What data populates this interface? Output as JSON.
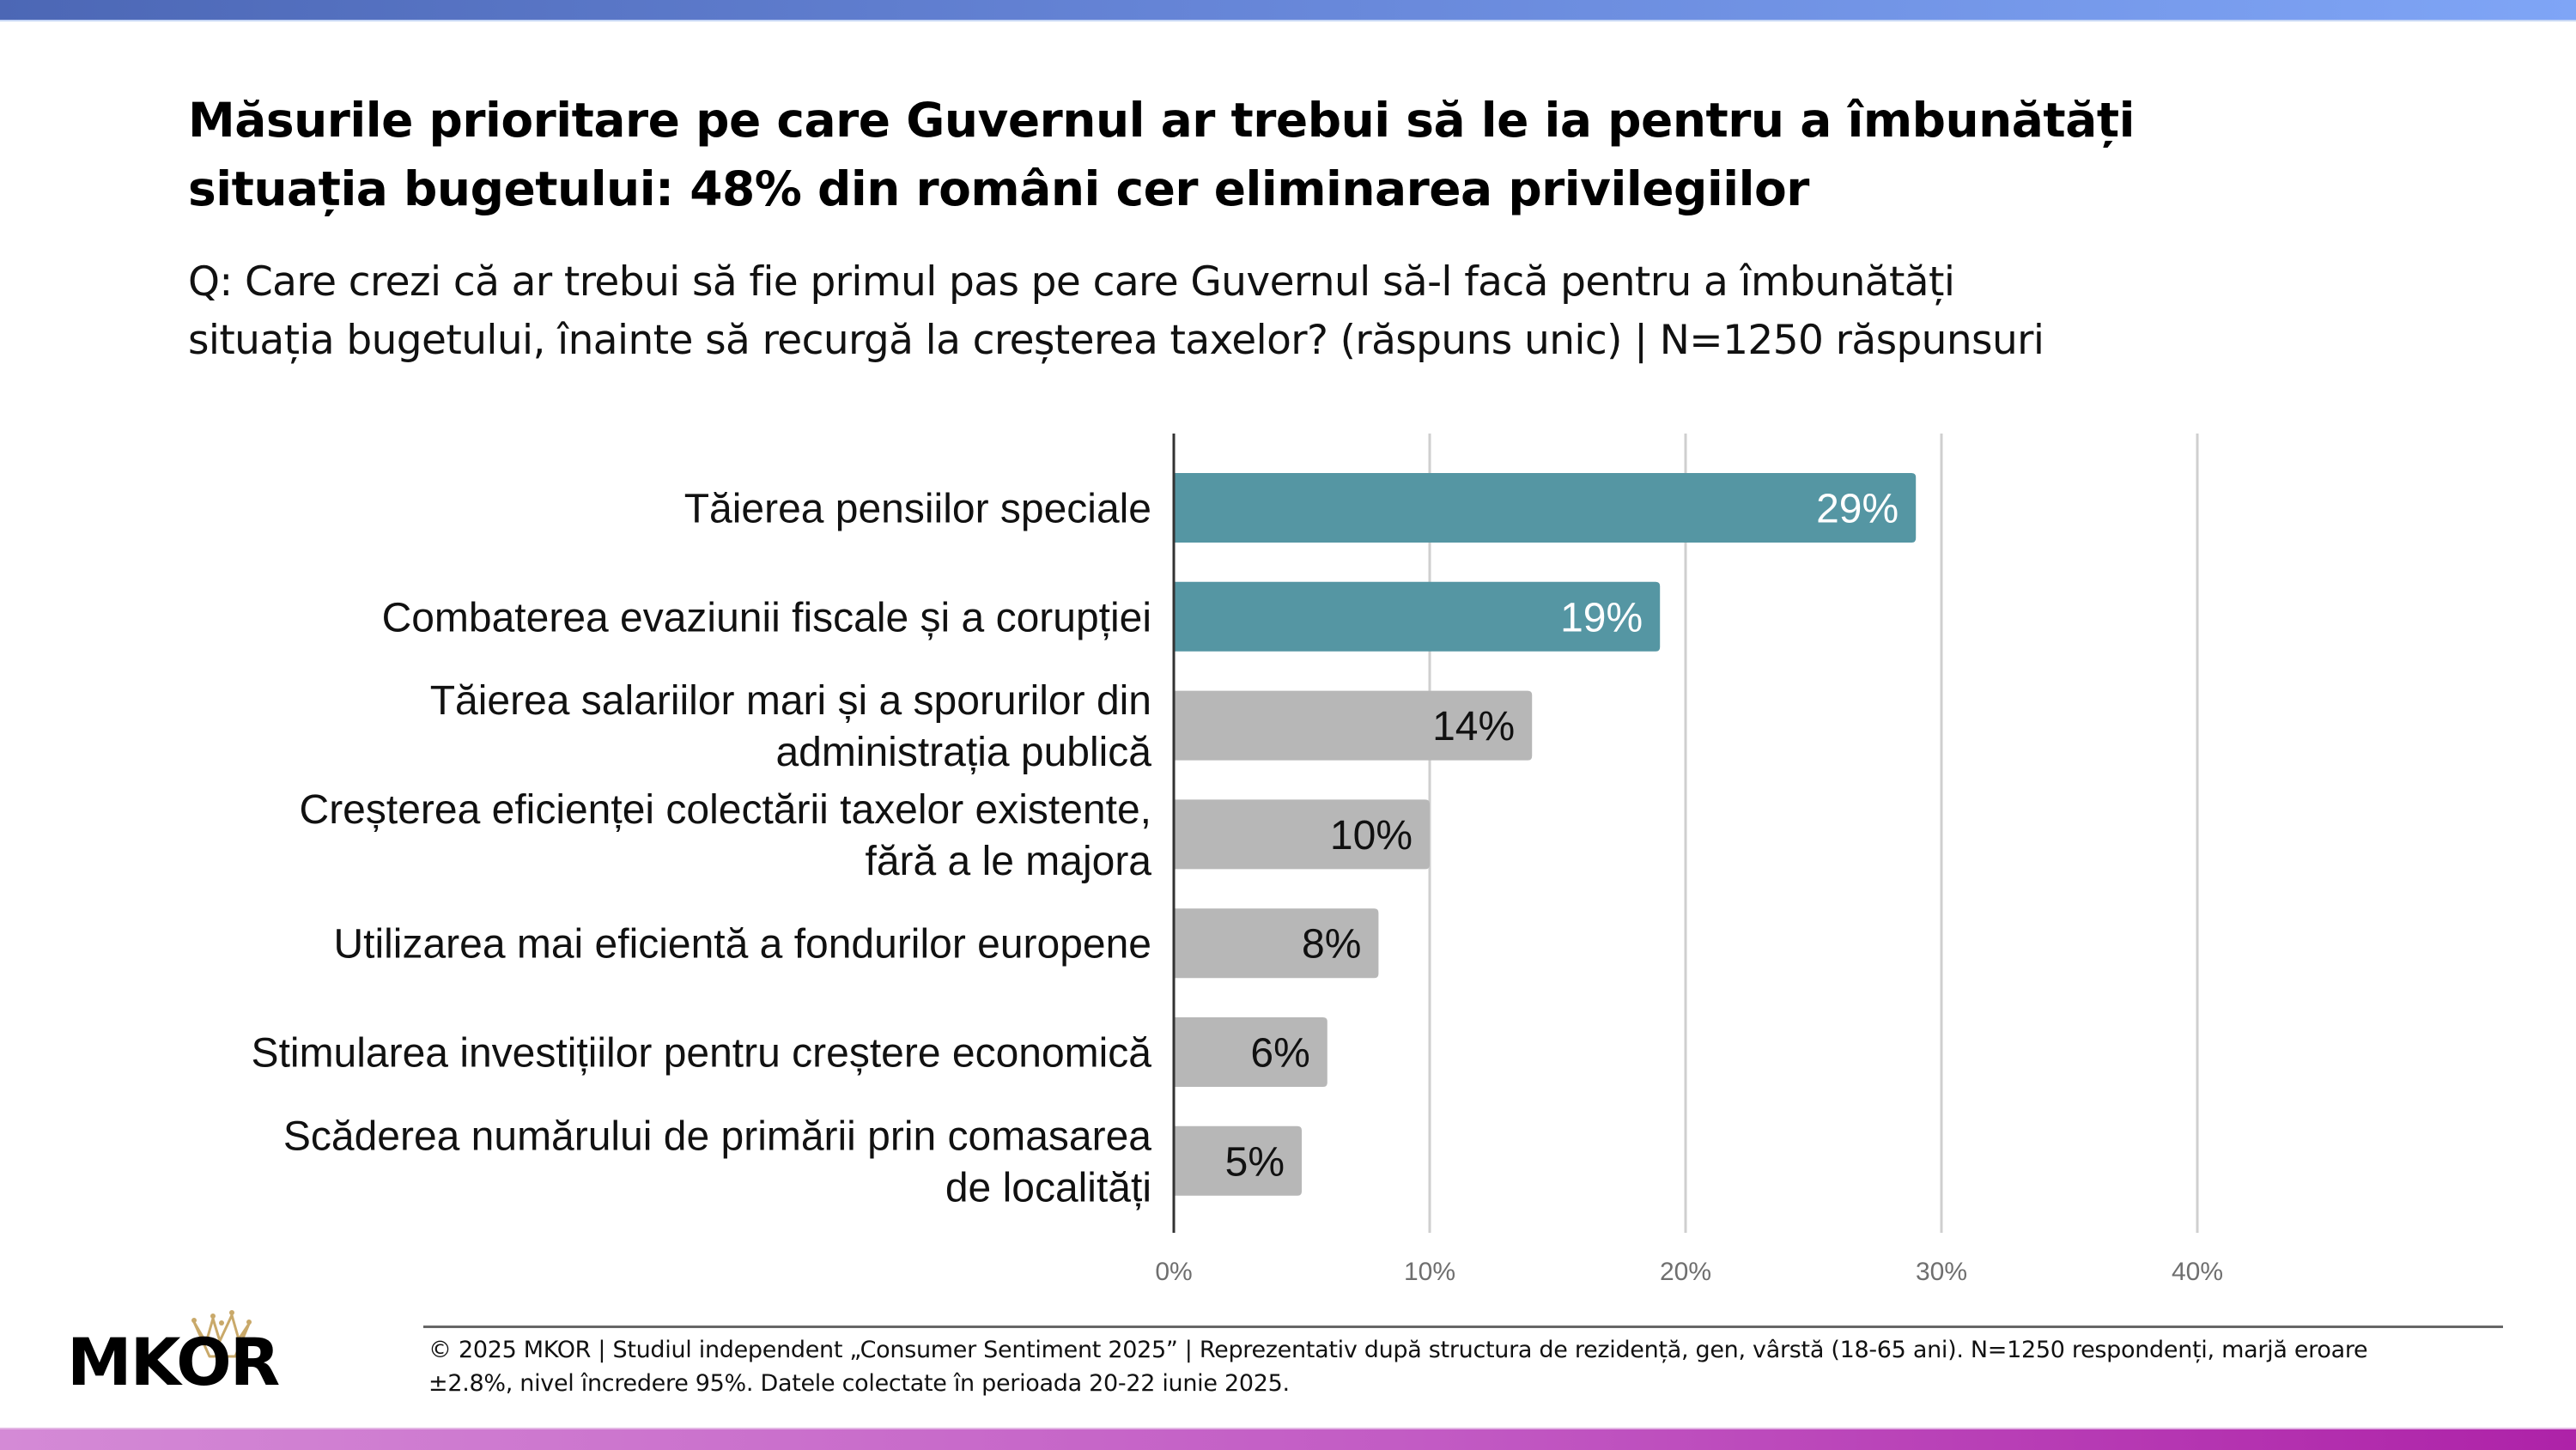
{
  "header": {
    "title_line1": "Măsurile prioritare pe care Guvernul ar trebui să le ia pentru a îmbunătăți",
    "title_line2": "situația bugetului: 48% din români cer eliminarea privilegiilor",
    "question_line1": "Q: Care crezi că ar trebui să fie primul pas pe care Guvernul să-l facă pentru a îmbunătăți",
    "question_line2": "situația bugetului, înainte să recurgă la creșterea taxelor? (răspuns unic) | N=1250 răspunsuri"
  },
  "colors": {
    "highlight_bar": "#5596a3",
    "default_bar": "#b7b7b7",
    "highlight_value_text": "#ffffff",
    "default_value_text": "#111111",
    "gridline": "#cfcfcf",
    "axis": "#333333"
  },
  "chart_data": {
    "type": "bar",
    "orientation": "horizontal",
    "title": "Măsurile prioritare pe care Guvernul ar trebui să le ia pentru a îmbunătăți situația bugetului: 48% din români cer eliminarea privilegiilor",
    "xlabel": "",
    "ylabel": "",
    "xlim": [
      0,
      40
    ],
    "x_ticks": [
      0,
      10,
      20,
      30,
      40
    ],
    "x_tick_labels": [
      "0%",
      "10%",
      "20%",
      "30%",
      "40%"
    ],
    "grid": true,
    "categories": [
      [
        "Tăierea pensiilor speciale"
      ],
      [
        "Combaterea evaziunii fiscale și a corupției"
      ],
      [
        "Tăierea salariilor mari și a sporurilor din",
        "administrația publică"
      ],
      [
        "Creșterea eficienței colectării taxelor existente,",
        "fără a le majora"
      ],
      [
        "Utilizarea mai eficientă a fondurilor europene"
      ],
      [
        "Stimularea investițiilor pentru creștere economică"
      ],
      [
        "Scăderea numărului de primării prin comasarea",
        "de localități"
      ]
    ],
    "values": [
      29,
      19,
      14,
      10,
      8,
      6,
      5
    ],
    "value_labels": [
      "29%",
      "19%",
      "14%",
      "10%",
      "8%",
      "6%",
      "5%"
    ],
    "highlighted": [
      true,
      true,
      false,
      false,
      false,
      false,
      false
    ]
  },
  "footer": {
    "logo_text": "MKOR",
    "line1": "© 2025 MKOR | Studiul independent „Consumer Sentiment 2025” | Reprezentativ după structura de rezidență, gen, vârstă (18-65 ani). N=1250 respondenți, marjă eroare",
    "line2": "±2.8%, nivel încredere 95%. Datele colectate în perioada 20-22 iunie 2025."
  }
}
